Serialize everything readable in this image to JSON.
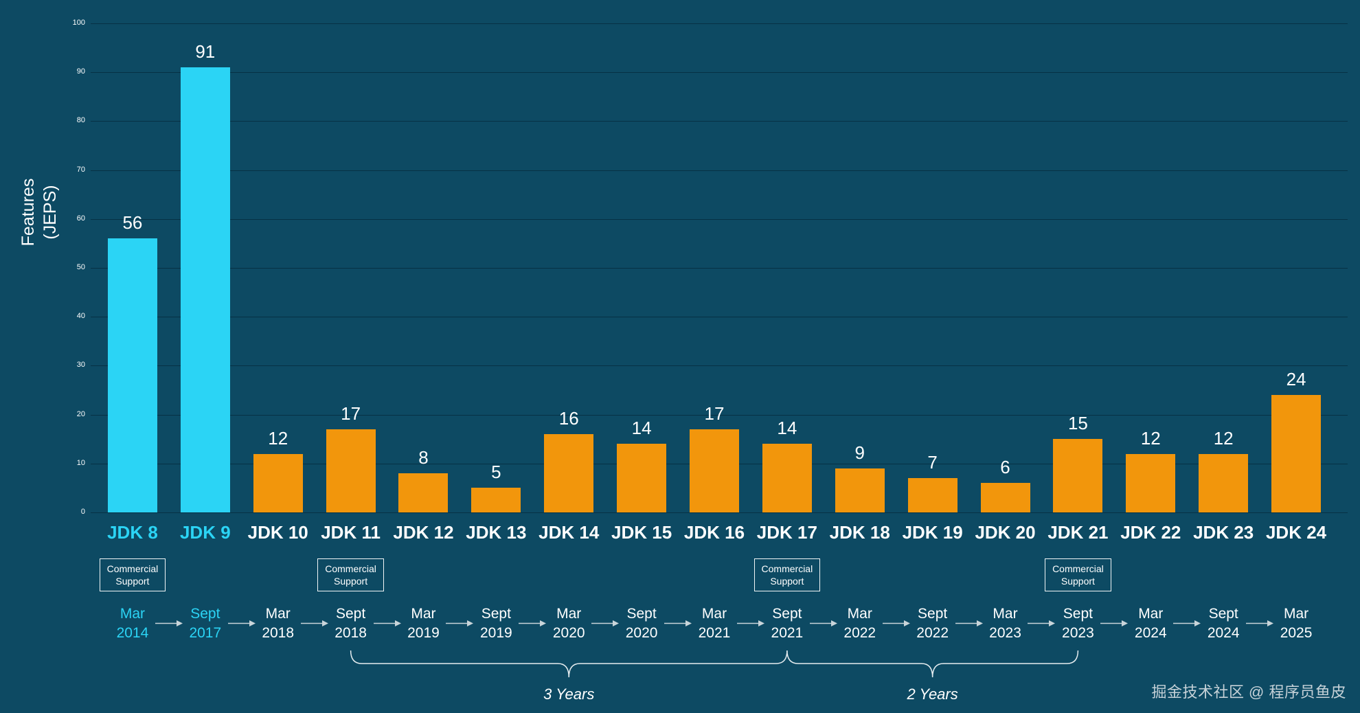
{
  "page": {
    "background": "#0D4A63",
    "watermark": "掘金技术社区 @ 程序员鱼皮"
  },
  "axis": {
    "ylabel_line1": "Features",
    "ylabel_line2": "(JEPS)"
  },
  "colors": {
    "highlight_cyan": "#2BD4F5",
    "bar_orange": "#F2960C",
    "text_white": "#FFFFFF",
    "arrow_gray": "#C9D5DA"
  },
  "chart_data": {
    "type": "bar",
    "title": "",
    "xlabel": "",
    "ylabel": "Features (JEPS)",
    "ylim": [
      0,
      100
    ],
    "ytick_step": 10,
    "grid": true,
    "legend": "none",
    "categories": [
      "JDK 8",
      "JDK 9",
      "JDK 10",
      "JDK 11",
      "JDK 12",
      "JDK 13",
      "JDK 14",
      "JDK 15",
      "JDK 16",
      "JDK 17",
      "JDK 18",
      "JDK 19",
      "JDK 20",
      "JDK 21",
      "JDK 22",
      "JDK 23",
      "JDK 24"
    ],
    "values": [
      56,
      91,
      12,
      17,
      8,
      5,
      16,
      14,
      17,
      14,
      9,
      7,
      6,
      15,
      12,
      12,
      24
    ],
    "highlight_indexes": [
      0,
      1
    ],
    "highlight_color": "#2BD4F5",
    "bar_color": "#F2960C",
    "release_dates": [
      {
        "month": "Mar",
        "year": "2014",
        "accent": true
      },
      {
        "month": "Sept",
        "year": "2017",
        "accent": true
      },
      {
        "month": "Mar",
        "year": "2018",
        "accent": false
      },
      {
        "month": "Sept",
        "year": "2018",
        "accent": false
      },
      {
        "month": "Mar",
        "year": "2019",
        "accent": false
      },
      {
        "month": "Sept",
        "year": "2019",
        "accent": false
      },
      {
        "month": "Mar",
        "year": "2020",
        "accent": false
      },
      {
        "month": "Sept",
        "year": "2020",
        "accent": false
      },
      {
        "month": "Mar",
        "year": "2021",
        "accent": false
      },
      {
        "month": "Sept",
        "year": "2021",
        "accent": false
      },
      {
        "month": "Mar",
        "year": "2022",
        "accent": false
      },
      {
        "month": "Sept",
        "year": "2022",
        "accent": false
      },
      {
        "month": "Mar",
        "year": "2023",
        "accent": false
      },
      {
        "month": "Sept",
        "year": "2023",
        "accent": false
      },
      {
        "month": "Mar",
        "year": "2024",
        "accent": false
      },
      {
        "month": "Sept",
        "year": "2024",
        "accent": false
      },
      {
        "month": "Mar",
        "year": "2025",
        "accent": false
      }
    ],
    "commercial_support": {
      "line1": "Commercial",
      "line2": "Support",
      "indexes": [
        0,
        3,
        9,
        13
      ]
    },
    "braces": [
      {
        "from_index": 3,
        "to_index": 9,
        "label": "3 Years"
      },
      {
        "from_index": 9,
        "to_index": 13,
        "label": "2 Years"
      }
    ]
  }
}
